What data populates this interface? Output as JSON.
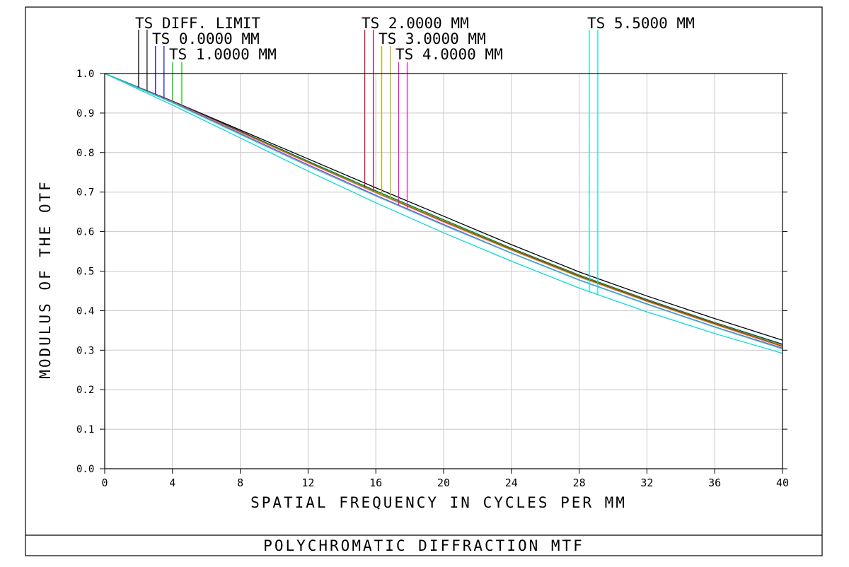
{
  "chart_data": {
    "type": "line",
    "title": "POLYCHROMATIC DIFFRACTION MTF",
    "xlabel": "SPATIAL FREQUENCY IN CYCLES PER MM",
    "ylabel": "MODULUS OF THE OTF",
    "xlim": [
      0,
      40
    ],
    "ylim": [
      0,
      1.0
    ],
    "x_ticks": [
      "0",
      "4",
      "8",
      "12",
      "16",
      "20",
      "24",
      "28",
      "32",
      "36",
      "40"
    ],
    "y_ticks": [
      "0.0",
      "0.1",
      "0.2",
      "0.3",
      "0.4",
      "0.5",
      "0.6",
      "0.7",
      "0.8",
      "0.9",
      "1.0"
    ],
    "grid": true,
    "legend_labels": [
      {
        "text": "TS DIFF. LIMIT",
        "marker_x": [
          2.0,
          2.5
        ],
        "color": "#000000"
      },
      {
        "text": "TS 0.0000 MM",
        "marker_x": [
          3.0,
          3.5
        ],
        "color": "#0000cc"
      },
      {
        "text": "TS 1.0000 MM",
        "marker_x": [
          4.0,
          4.55
        ],
        "color": "#00cc00"
      },
      {
        "text": "TS 2.0000 MM",
        "marker_x": [
          15.35,
          15.85
        ],
        "color": "#cc0033"
      },
      {
        "text": "TS 3.0000 MM",
        "marker_x": [
          16.35,
          16.85
        ],
        "color": "#bbaa00"
      },
      {
        "text": "TS 4.0000 MM",
        "marker_x": [
          17.35,
          17.85
        ],
        "color": "#ff00cc"
      },
      {
        "text": "TS 5.5000 MM",
        "marker_x": [
          28.6,
          29.1
        ],
        "color": "#00dddd"
      }
    ],
    "series": [
      {
        "color": "#000000",
        "x": [
          0,
          4,
          8,
          12,
          16,
          20,
          24,
          28,
          32,
          36,
          40
        ],
        "y": [
          1.0,
          0.93,
          0.857,
          0.784,
          0.711,
          0.639,
          0.567,
          0.498,
          0.437,
          0.38,
          0.325
        ]
      },
      {
        "color": "#0000cc",
        "x": [
          0,
          4,
          8,
          12,
          16,
          20,
          24,
          28,
          32,
          36,
          40
        ],
        "y": [
          1.0,
          0.93,
          0.854,
          0.778,
          0.703,
          0.63,
          0.558,
          0.49,
          0.428,
          0.37,
          0.315
        ]
      },
      {
        "color": "#00cc00",
        "x": [
          0,
          4,
          8,
          12,
          16,
          20,
          24,
          28,
          32,
          36,
          40
        ],
        "y": [
          1.0,
          0.929,
          0.853,
          0.777,
          0.702,
          0.629,
          0.557,
          0.489,
          0.427,
          0.369,
          0.313
        ]
      },
      {
        "color": "#cc0033",
        "x": [
          0,
          4,
          8,
          12,
          16,
          20,
          24,
          28,
          32,
          36,
          40
        ],
        "y": [
          1.0,
          0.929,
          0.852,
          0.775,
          0.699,
          0.626,
          0.555,
          0.487,
          0.425,
          0.367,
          0.31
        ]
      },
      {
        "color": "#bbaa00",
        "x": [
          0,
          4,
          8,
          12,
          16,
          20,
          24,
          28,
          32,
          36,
          40
        ],
        "y": [
          1.0,
          0.928,
          0.851,
          0.774,
          0.698,
          0.624,
          0.553,
          0.485,
          0.423,
          0.365,
          0.308
        ]
      },
      {
        "color": "#ff00cc",
        "x": [
          0,
          4,
          8,
          12,
          16,
          20,
          24,
          28,
          32,
          36,
          40
        ],
        "y": [
          1.0,
          0.927,
          0.848,
          0.769,
          0.692,
          0.618,
          0.546,
          0.478,
          0.417,
          0.359,
          0.305
        ]
      },
      {
        "color": "#00dddd",
        "x": [
          0,
          4,
          8,
          12,
          16,
          20,
          24,
          28,
          32,
          36,
          40
        ],
        "y": [
          1.0,
          0.926,
          0.846,
          0.766,
          0.69,
          0.616,
          0.545,
          0.477,
          0.416,
          0.358,
          0.303
        ]
      },
      {
        "color": "#00dddd",
        "x": [
          0,
          4,
          8,
          12,
          16,
          20,
          24,
          28,
          32,
          36,
          40
        ],
        "y": [
          1.0,
          0.92,
          0.837,
          0.753,
          0.673,
          0.597,
          0.525,
          0.457,
          0.397,
          0.342,
          0.292
        ]
      }
    ]
  }
}
